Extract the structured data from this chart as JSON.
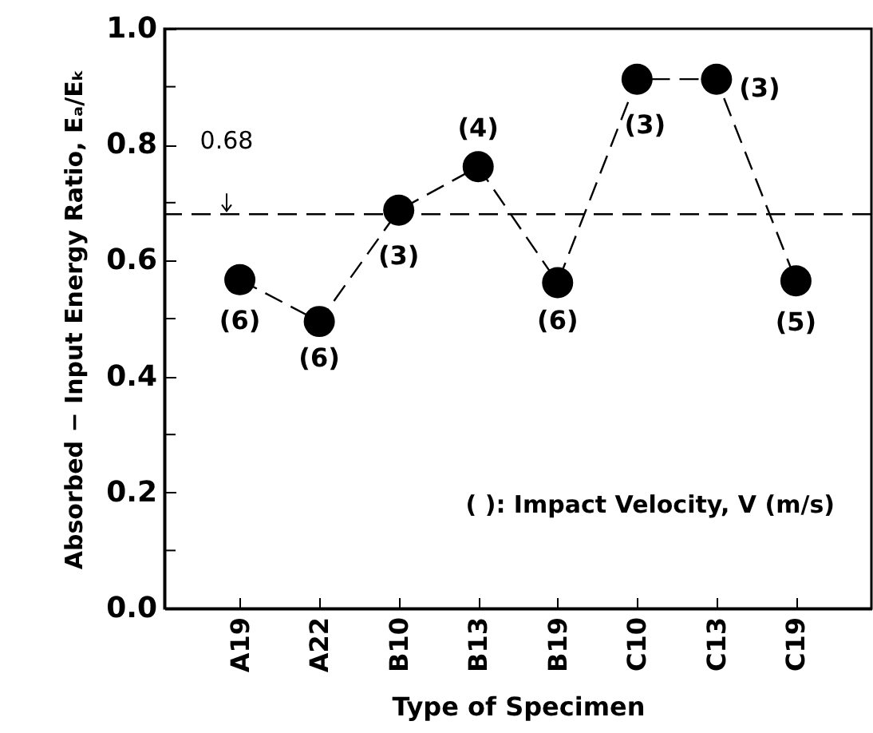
{
  "chart_data": {
    "type": "line",
    "xlabel": "Type of Specimen",
    "ylabel": "Absorbed − Input Energy Ratio,  Eₐ/Eₖ",
    "categories": [
      "A19",
      "A22",
      "B10",
      "B13",
      "B19",
      "C10",
      "C13",
      "C19"
    ],
    "series": [
      {
        "color": "#000000",
        "values": [
          0.567,
          0.495,
          0.687,
          0.762,
          0.562,
          0.913,
          0.913,
          0.565
        ]
      }
    ],
    "ylim": [
      0,
      1
    ],
    "yticks": [
      {
        "value": 0,
        "label": "0.0"
      },
      {
        "value": 0.1,
        "label": null
      },
      0.2,
      {
        "value": 0.3,
        "label": null
      },
      0.4,
      {
        "value": 0.5,
        "label": null
      },
      0.6,
      {
        "value": 0.7,
        "label": null
      },
      0.8,
      {
        "value": 0.9,
        "label": null
      },
      {
        "value": 1,
        "label": "1.0"
      }
    ],
    "grid": false,
    "marker": "circle",
    "line_style": "dashed",
    "ref_lines": [
      {
        "axis": "y",
        "value": 0.68,
        "label": "0.68",
        "line_style": "dashed",
        "color": "#000000"
      }
    ],
    "annotations": [
      {
        "text": "(6)",
        "x": "A19",
        "y": 0.567
      },
      {
        "text": "(6)",
        "x": "A22",
        "y": 0.495
      },
      {
        "text": "(3)",
        "x": "B10",
        "y": 0.687
      },
      {
        "text": "(4)",
        "x": "B13",
        "y": 0.762
      },
      {
        "text": "(6)",
        "x": "B19",
        "y": 0.562
      },
      {
        "text": "(3)",
        "x": "C10",
        "y": 0.913
      },
      {
        "text": "(3)",
        "x": "C13",
        "y": 0.913
      },
      {
        "text": "(5)",
        "x": "C19",
        "y": 0.565
      },
      "(   ): Impact Velocity, V (m/s)"
    ]
  }
}
